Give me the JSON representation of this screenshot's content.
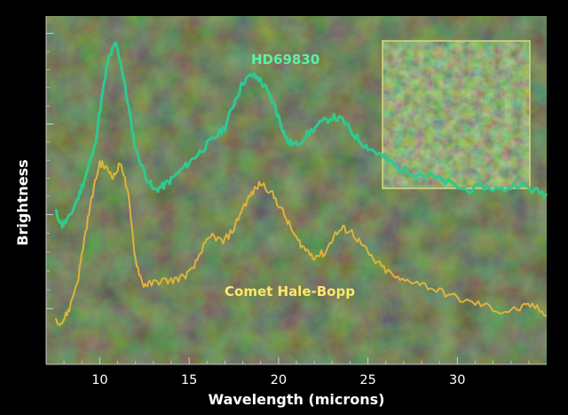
{
  "chart_data": {
    "type": "line",
    "xlabel": "Wavelength (microns)",
    "ylabel": "Brightness",
    "xlim": [
      7,
      35
    ],
    "ylim": [
      0,
      10
    ],
    "x_ticks": [
      10,
      15,
      20,
      25,
      30
    ],
    "x_minor_ticks": [
      8,
      9,
      11,
      12,
      13,
      14,
      16,
      17,
      18,
      19,
      21,
      22,
      23,
      24,
      26,
      27,
      28,
      29,
      31,
      32,
      33,
      34
    ],
    "y_ticks": [
      1.6,
      4.3,
      6.9,
      9.5
    ],
    "grid": false,
    "series": [
      {
        "name": "HD69830",
        "color": "#2fc890",
        "label_color": "#5ef0a8",
        "x": [
          7.5,
          7.9,
          8.3,
          8.8,
          9.2,
          9.7,
          10.1,
          10.5,
          10.9,
          11.2,
          11.6,
          12.0,
          12.5,
          13.0,
          13.5,
          14.0,
          14.6,
          15.2,
          15.8,
          16.4,
          17.0,
          17.5,
          18.0,
          18.5,
          18.9,
          19.3,
          19.8,
          20.2,
          20.5,
          21.0,
          21.6,
          22.3,
          23.0,
          23.6,
          24.2,
          24.8,
          25.4,
          26.0,
          26.8,
          27.6,
          28.5,
          29.5,
          30.5,
          31.5,
          32.5,
          33.5,
          34.2,
          35.0
        ],
        "y": [
          4.4,
          4.0,
          4.2,
          4.8,
          5.4,
          6.2,
          7.6,
          8.8,
          9.2,
          8.6,
          7.4,
          6.2,
          5.5,
          5.0,
          5.1,
          5.3,
          5.6,
          5.9,
          6.2,
          6.5,
          6.8,
          7.5,
          8.1,
          8.3,
          8.2,
          7.9,
          7.4,
          6.8,
          6.4,
          6.3,
          6.6,
          6.9,
          7.1,
          7.0,
          6.6,
          6.3,
          6.1,
          5.9,
          5.6,
          5.5,
          5.4,
          5.2,
          5.0,
          5.1,
          5.0,
          5.2,
          5.0,
          4.9
        ]
      },
      {
        "name": "Comet Hale-Bopp",
        "color": "#e0b23a",
        "label_color": "#ffe868",
        "x": [
          7.5,
          7.9,
          8.3,
          8.8,
          9.2,
          9.6,
          10.0,
          10.4,
          10.8,
          11.2,
          11.6,
          12.0,
          12.4,
          12.8,
          13.4,
          14.0,
          14.6,
          15.2,
          15.7,
          16.3,
          16.9,
          17.5,
          18.0,
          18.5,
          19.0,
          19.5,
          20.0,
          20.5,
          21.0,
          21.5,
          22.0,
          22.6,
          23.1,
          23.6,
          24.1,
          24.7,
          25.3,
          26.0,
          26.8,
          27.6,
          28.5,
          29.5,
          30.5,
          31.5,
          32.5,
          33.5,
          34.2,
          35.0
        ],
        "y": [
          1.3,
          1.2,
          1.6,
          2.5,
          3.8,
          4.9,
          5.8,
          5.6,
          5.4,
          5.8,
          4.8,
          3.0,
          2.3,
          2.3,
          2.4,
          2.4,
          2.5,
          2.7,
          3.3,
          3.7,
          3.5,
          3.9,
          4.5,
          4.9,
          5.2,
          5.0,
          4.6,
          4.1,
          3.6,
          3.3,
          3.1,
          3.2,
          3.7,
          3.9,
          3.8,
          3.4,
          3.0,
          2.7,
          2.4,
          2.4,
          2.2,
          2.0,
          1.8,
          1.7,
          1.5,
          1.6,
          1.7,
          1.4
        ]
      }
    ]
  }
}
